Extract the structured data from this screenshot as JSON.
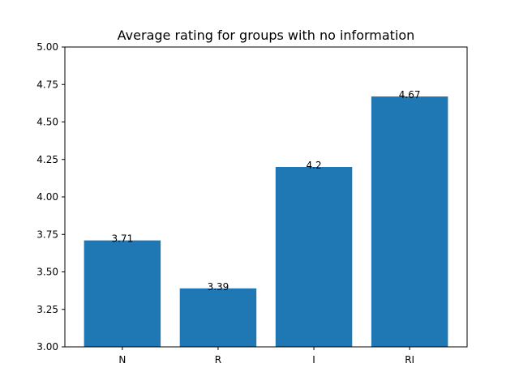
{
  "chart_data": {
    "type": "bar",
    "title": "Average rating for groups with no information",
    "xlabel": "",
    "ylabel": "",
    "categories": [
      "N",
      "R",
      "I",
      "RI"
    ],
    "values": [
      3.71,
      3.39,
      4.2,
      4.67
    ],
    "data_labels": [
      "3.71",
      "3.39",
      "4.2",
      "4.67"
    ],
    "ylim": [
      3.0,
      5.0
    ],
    "yticks": [
      3.0,
      3.25,
      3.5,
      3.75,
      4.0,
      4.25,
      4.5,
      4.75,
      5.0
    ],
    "ytick_labels": [
      "3.00",
      "3.25",
      "3.50",
      "3.75",
      "4.00",
      "4.25",
      "4.50",
      "4.75",
      "5.00"
    ],
    "bar_color": "#1f77b4",
    "grid": false,
    "legend": "none"
  }
}
